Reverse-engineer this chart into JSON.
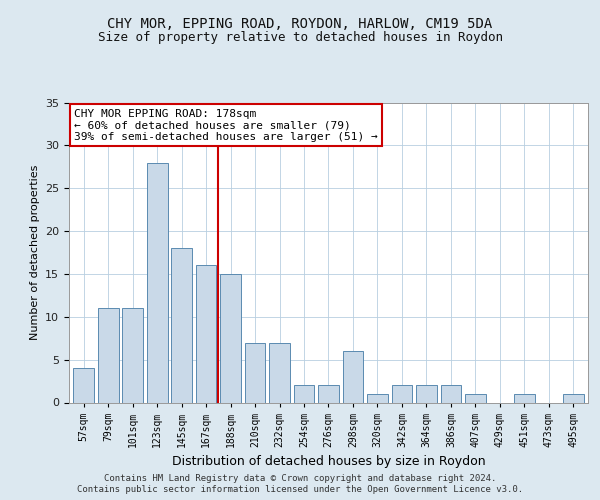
{
  "title1": "CHY MOR, EPPING ROAD, ROYDON, HARLOW, CM19 5DA",
  "title2": "Size of property relative to detached houses in Roydon",
  "xlabel": "Distribution of detached houses by size in Roydon",
  "ylabel": "Number of detached properties",
  "categories": [
    "57sqm",
    "79sqm",
    "101sqm",
    "123sqm",
    "145sqm",
    "167sqm",
    "188sqm",
    "210sqm",
    "232sqm",
    "254sqm",
    "276sqm",
    "298sqm",
    "320sqm",
    "342sqm",
    "364sqm",
    "386sqm",
    "407sqm",
    "429sqm",
    "451sqm",
    "473sqm",
    "495sqm"
  ],
  "values": [
    4,
    11,
    11,
    28,
    18,
    16,
    15,
    7,
    7,
    2,
    2,
    6,
    1,
    2,
    2,
    2,
    1,
    0,
    1,
    0,
    1
  ],
  "bar_color": "#c9d9e8",
  "bar_edge_color": "#5a8ab0",
  "vline_x": 5.5,
  "vline_color": "#cc0000",
  "annotation_text": "CHY MOR EPPING ROAD: 178sqm\n← 60% of detached houses are smaller (79)\n39% of semi-detached houses are larger (51) →",
  "annotation_box_color": "#ffffff",
  "annotation_box_edge": "#cc0000",
  "ylim": [
    0,
    35
  ],
  "yticks": [
    0,
    5,
    10,
    15,
    20,
    25,
    30,
    35
  ],
  "footer1": "Contains HM Land Registry data © Crown copyright and database right 2024.",
  "footer2": "Contains public sector information licensed under the Open Government Licence v3.0.",
  "bg_color": "#dce8f0",
  "plot_bg_color": "#ffffff"
}
